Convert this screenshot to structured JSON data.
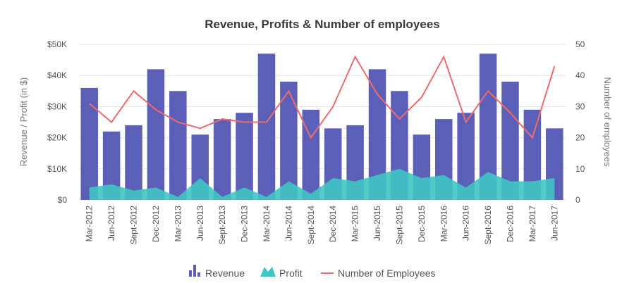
{
  "chart_data": {
    "type": "bar",
    "title": "Revenue, Profits & Number of employees",
    "categories": [
      "Mar-2012",
      "Jun-2012",
      "Sept-2012",
      "Dec-2012",
      "Mar-2013",
      "Jun-2013",
      "Sept-2013",
      "Dec-2013",
      "Mar-2014",
      "Jun-2014",
      "Sept-2014",
      "Dec-2014",
      "Mar-2015",
      "Jun-2015",
      "Sept-2015",
      "Dec-2015",
      "Mar-2016",
      "Jun-2016",
      "Sept-2016",
      "Dec-2016",
      "Mar-2017",
      "Jun-2017"
    ],
    "y_left": {
      "label": "Revenue / Profit (in $)",
      "ylim": [
        0,
        50000
      ],
      "ticks": [
        0,
        10000,
        20000,
        30000,
        40000,
        50000
      ],
      "tick_labels": [
        "$0",
        "$10K",
        "$20K",
        "$30K",
        "$40K",
        "$50K"
      ]
    },
    "y_right": {
      "label": "Number of employees",
      "ylim": [
        0,
        50
      ],
      "ticks": [
        0,
        10,
        20,
        30,
        40,
        50
      ],
      "tick_labels": [
        "0",
        "10",
        "20",
        "30",
        "40",
        "50"
      ]
    },
    "series": [
      {
        "name": "Revenue",
        "type": "bar",
        "axis": "left",
        "color": "#5b5fb8",
        "values": [
          36000,
          22000,
          24000,
          42000,
          35000,
          21000,
          26000,
          28000,
          47000,
          38000,
          29000,
          23000,
          24000,
          42000,
          35000,
          21000,
          26000,
          28000,
          47000,
          38000,
          29000,
          23000
        ]
      },
      {
        "name": "Profit",
        "type": "area",
        "axis": "left",
        "color": "#3fc5c3",
        "values": [
          4000,
          5000,
          3000,
          4000,
          1000,
          7000,
          1000,
          4000,
          1000,
          6000,
          2000,
          7000,
          6000,
          8000,
          10000,
          7000,
          8000,
          4000,
          9000,
          6000,
          6000,
          7000
        ]
      },
      {
        "name": "Number of Employees",
        "type": "line",
        "axis": "right",
        "color": "#ef6b6b",
        "values": [
          31,
          25,
          35,
          29,
          25,
          23,
          26,
          25,
          25,
          35,
          20,
          30,
          46,
          34,
          26,
          33,
          46,
          25,
          35,
          28,
          20,
          43
        ]
      }
    ],
    "legend": {
      "position": "bottom",
      "items": [
        "Revenue",
        "Profit",
        "Number of Employees"
      ]
    },
    "grid": true
  }
}
